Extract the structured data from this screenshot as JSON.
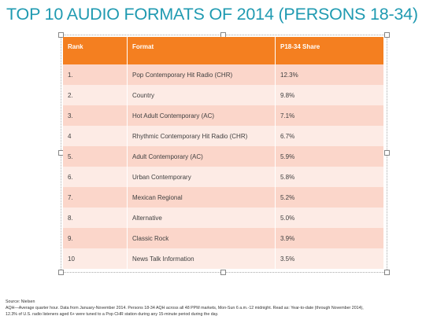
{
  "title": "TOP 10 AUDIO FORMATS OF 2014 (PERSONS 18-34)",
  "table": {
    "header": [
      "Rank",
      "Format",
      "P18-34 Share"
    ],
    "rows": [
      [
        "1.",
        "Pop Contemporary Hit Radio (CHR)",
        "12.3%"
      ],
      [
        "2.",
        "Country",
        "9.8%"
      ],
      [
        "3.",
        "Hot Adult Contemporary (AC)",
        "7.1%"
      ],
      [
        "4",
        "Rhythmic Contemporary Hit Radio (CHR)",
        "6.7%"
      ],
      [
        "5.",
        "Adult Contemporary (AC)",
        "5.9%"
      ],
      [
        "6.",
        "Urban Contemporary",
        "5.8%"
      ],
      [
        "7.",
        "Mexican Regional",
        "5.2%"
      ],
      [
        "8.",
        "Alternative",
        "5.0%"
      ],
      [
        "9.",
        "Classic Rock",
        "3.9%"
      ],
      [
        "10",
        "News Talk Information",
        "3.5%"
      ]
    ]
  },
  "footnotes": [
    "Source: Nielsen",
    "AQH—Average quarter hour. Data from January-November 2014. Persons 18-34 AQH across all 48 PPM markets, Mon-Sun 6 a.m.-12 midnight. Read as: Year-to-date (through November 2014),",
    "12.3% of U.S. radio listeners aged 6+ were tuned to a Pop CHR station during any 15-minute period during the day."
  ]
}
